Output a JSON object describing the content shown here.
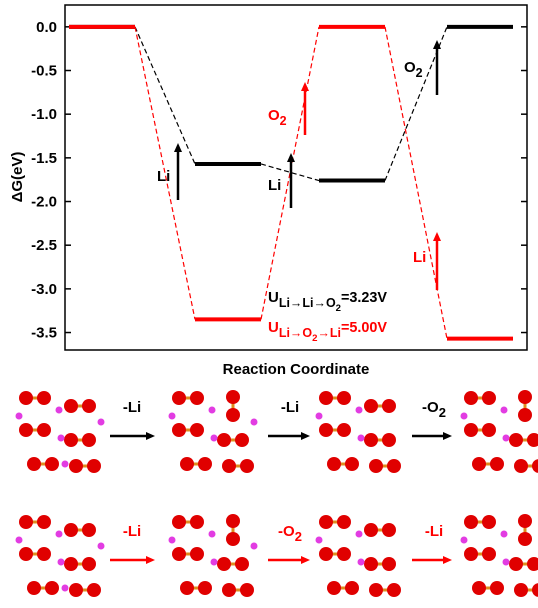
{
  "chart_data": {
    "type": "profile",
    "y_label": "ΔG(eV)",
    "x_label": "Reaction Coordinate",
    "categories": [
      null,
      null,
      null,
      null
    ],
    "series": [
      {
        "color": "#000000",
        "values": [
          0,
          -1.57,
          -1.76,
          0
        ]
      },
      {
        "color": "#ff0000",
        "values": [
          0,
          -3.35,
          0,
          -3.57
        ]
      }
    ],
    "ylim": [
      -3.7,
      0.25
    ],
    "yticks": [
      {
        "value": 0,
        "label": "0.0"
      },
      {
        "value": -0.5,
        "label": "-0.5"
      },
      {
        "value": -1,
        "label": "-1.0"
      },
      {
        "value": -1.5,
        "label": "-1.5"
      },
      {
        "value": -2,
        "label": "-2.0"
      },
      {
        "value": -2.5,
        "label": "-2.5"
      },
      {
        "value": -3,
        "label": "-3.0"
      },
      {
        "value": -3.5,
        "label": "-3.5"
      }
    ],
    "annotations": [
      {
        "text": "Li",
        "color": "#000000"
      },
      {
        "text": "Li",
        "color": "#000000"
      },
      {
        "text": "O",
        "sub": "2",
        "color": "#000000"
      },
      {
        "text": "O",
        "sub": "2",
        "color": "#ff0000"
      },
      {
        "text": "Li",
        "color": "#ff0000"
      },
      {
        "text": "U",
        "sub": "Li→Li→O",
        "sub2": "2",
        "tail": "=3.23V",
        "color": "#000000"
      },
      {
        "text": "U",
        "sub": "Li→O",
        "sub2": "2",
        "tail2": "→Li",
        "tail": "=5.00V",
        "color": "#ff0000"
      }
    ]
  },
  "reactions": [
    {
      "color": "#000000",
      "steps": [
        {
          "text": "-Li"
        },
        {
          "text": "-Li"
        },
        {
          "text": "-O",
          "sub": "2"
        }
      ]
    },
    {
      "color": "#ff0000",
      "steps": [
        {
          "text": "-Li"
        },
        {
          "text": "-O",
          "sub": "2"
        },
        {
          "text": "-Li"
        }
      ]
    }
  ]
}
